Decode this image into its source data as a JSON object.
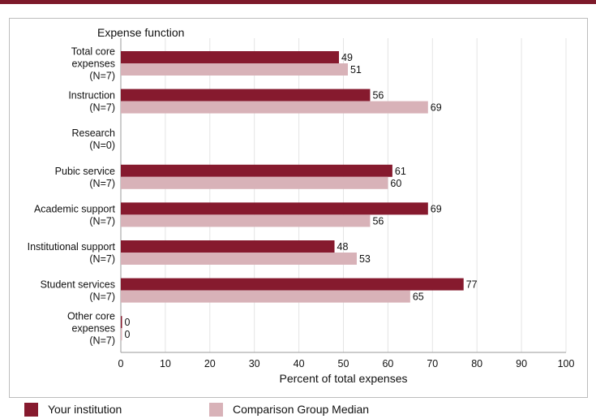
{
  "chart_data": {
    "type": "bar",
    "orientation": "horizontal",
    "y_axis_title": "Expense function",
    "xlabel": "Percent of total expenses",
    "xlim": [
      0,
      100
    ],
    "x_ticks": [
      0,
      10,
      20,
      30,
      40,
      50,
      60,
      70,
      80,
      90,
      100
    ],
    "grid": true,
    "legend_position": "bottom",
    "categories": [
      [
        "Total core",
        "expenses",
        "(N=7)"
      ],
      [
        "Instruction",
        "(N=7)"
      ],
      [
        "Research",
        "(N=0)"
      ],
      [
        "Pubic service",
        "(N=7)"
      ],
      [
        "Academic support",
        "(N=7)"
      ],
      [
        "Institutional support",
        "(N=7)"
      ],
      [
        "Student services",
        "(N=7)"
      ],
      [
        "Other core",
        "expenses",
        "(N=7)"
      ]
    ],
    "series": [
      {
        "name": "Your institution",
        "color": "#861a2e",
        "values": [
          49,
          56,
          null,
          61,
          69,
          48,
          77,
          0
        ]
      },
      {
        "name": "Comparison Group Median",
        "color": "#d8b2b8",
        "values": [
          51,
          69,
          null,
          60,
          56,
          53,
          65,
          0
        ]
      }
    ]
  },
  "legend": {
    "item1": "Your institution",
    "item2": "Comparison Group Median"
  }
}
